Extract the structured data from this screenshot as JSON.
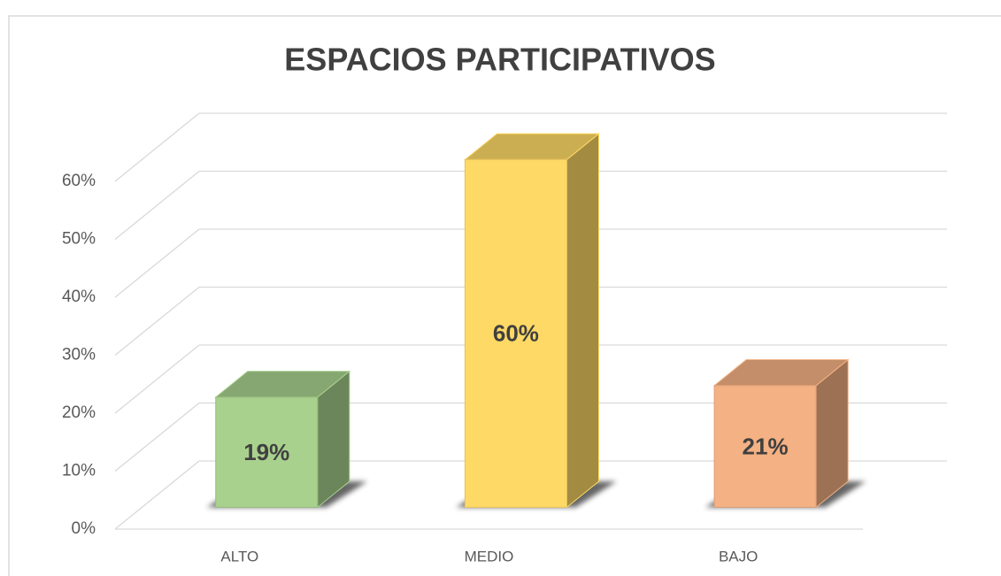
{
  "chart_data": {
    "type": "bar3d",
    "title": "ESPACIOS PARTICIPATIVOS",
    "categories": [
      "ALTO",
      "MEDIO",
      "BAJO"
    ],
    "values": [
      19,
      60,
      21
    ],
    "value_labels": [
      "19%",
      "60%",
      "21%"
    ],
    "colors": [
      "#a9d18e",
      "#ffd966",
      "#f4b183"
    ],
    "ylim": [
      0,
      60
    ],
    "yticks": [
      {
        "value": 0,
        "label": "0%"
      },
      {
        "value": 10,
        "label": "10%"
      },
      {
        "value": 20,
        "label": "20%"
      },
      {
        "value": 30,
        "label": "30%"
      },
      {
        "value": 40,
        "label": "40%"
      },
      {
        "value": 50,
        "label": "50%"
      },
      {
        "value": 60,
        "label": "60%"
      }
    ],
    "grid": true
  }
}
